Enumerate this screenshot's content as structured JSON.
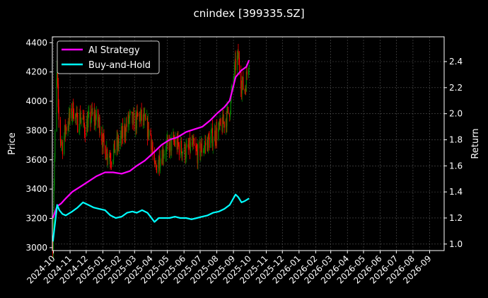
{
  "chart_data": {
    "type": "line",
    "title": "cnindex [399335.SZ]",
    "xlabel": "",
    "ylabel": "Price",
    "ylabel_right": "Return",
    "x_ticks": [
      "2024-10",
      "2024-11",
      "2024-12",
      "2025-01",
      "2025-02",
      "2025-03",
      "2025-04",
      "2025-05",
      "2025-06",
      "2025-07",
      "2025-08",
      "2025-09",
      "2025-10",
      "2025-11",
      "2025-12",
      "2026-01",
      "2026-02",
      "2026-03",
      "2026-04",
      "2026-05",
      "2026-06",
      "2026-07",
      "2026-08",
      "2026-09"
    ],
    "xlim": [
      "2024-09-29",
      "2026-09-28"
    ],
    "ylim_left": [
      2980,
      4440
    ],
    "yticks_left": [
      3000,
      3200,
      3400,
      3600,
      3800,
      4000,
      4200,
      4400
    ],
    "ylim_right": [
      0.95,
      2.59
    ],
    "yticks_right": [
      1.0,
      1.2,
      1.4,
      1.6,
      1.8,
      2.0,
      2.2,
      2.4
    ],
    "grid": true,
    "legend": {
      "placement": "top-left",
      "entries": [
        {
          "label": "AI Strategy",
          "color": "#ff00ff"
        },
        {
          "label": "Buy-and-Hold",
          "color": "#00ffff"
        }
      ]
    },
    "colors": {
      "background": "#000000",
      "up_candle": "#008000",
      "down_candle": "#ff0000",
      "grid": "#555555",
      "axes": "#ffffff"
    },
    "price_anchor_points": [
      [
        "2024-09-30",
        3020
      ],
      [
        "2024-10-02",
        3450
      ],
      [
        "2024-10-04",
        3750
      ],
      [
        "2024-10-08",
        4250
      ],
      [
        "2024-10-10",
        3900
      ],
      [
        "2024-10-14",
        3750
      ],
      [
        "2024-10-18",
        3700
      ],
      [
        "2024-10-24",
        3820
      ],
      [
        "2024-10-31",
        3880
      ],
      [
        "2024-11-07",
        3950
      ],
      [
        "2024-11-14",
        3850
      ],
      [
        "2024-11-21",
        3900
      ],
      [
        "2024-11-28",
        3820
      ],
      [
        "2024-12-05",
        3860
      ],
      [
        "2024-12-12",
        3900
      ],
      [
        "2024-12-19",
        3880
      ],
      [
        "2024-12-26",
        3850
      ],
      [
        "2025-01-03",
        3680
      ],
      [
        "2025-01-10",
        3650
      ],
      [
        "2025-01-17",
        3620
      ],
      [
        "2025-01-24",
        3680
      ],
      [
        "2025-02-01",
        3720
      ],
      [
        "2025-02-10",
        3800
      ],
      [
        "2025-02-20",
        3880
      ],
      [
        "2025-03-01",
        3850
      ],
      [
        "2025-03-10",
        3900
      ],
      [
        "2025-03-20",
        3850
      ],
      [
        "2025-03-31",
        3770
      ],
      [
        "2025-04-07",
        3520
      ],
      [
        "2025-04-14",
        3600
      ],
      [
        "2025-04-24",
        3660
      ],
      [
        "2025-05-05",
        3700
      ],
      [
        "2025-05-15",
        3720
      ],
      [
        "2025-05-25",
        3680
      ],
      [
        "2025-06-05",
        3650
      ],
      [
        "2025-06-15",
        3700
      ],
      [
        "2025-06-25",
        3640
      ],
      [
        "2025-07-05",
        3680
      ],
      [
        "2025-07-15",
        3720
      ],
      [
        "2025-07-25",
        3760
      ],
      [
        "2025-08-05",
        3800
      ],
      [
        "2025-08-15",
        3860
      ],
      [
        "2025-08-25",
        3950
      ],
      [
        "2025-09-05",
        4250
      ],
      [
        "2025-09-10",
        4300
      ],
      [
        "2025-09-16",
        4120
      ],
      [
        "2025-09-22",
        4080
      ],
      [
        "2025-09-30",
        4300
      ]
    ],
    "series": [
      {
        "name": "AI Strategy",
        "color": "#ff00ff",
        "axis": "right",
        "points": [
          [
            "2024-09-30",
            1.2
          ],
          [
            "2024-10-08",
            1.29
          ],
          [
            "2024-10-15",
            1.31
          ],
          [
            "2024-10-24",
            1.35
          ],
          [
            "2024-11-05",
            1.4
          ],
          [
            "2024-11-20",
            1.44
          ],
          [
            "2024-12-05",
            1.48
          ],
          [
            "2024-12-20",
            1.52
          ],
          [
            "2025-01-05",
            1.55
          ],
          [
            "2025-01-20",
            1.55
          ],
          [
            "2025-02-05",
            1.54
          ],
          [
            "2025-02-20",
            1.56
          ],
          [
            "2025-03-05",
            1.6
          ],
          [
            "2025-03-20",
            1.64
          ],
          [
            "2025-04-05",
            1.7
          ],
          [
            "2025-04-20",
            1.76
          ],
          [
            "2025-05-05",
            1.8
          ],
          [
            "2025-05-20",
            1.82
          ],
          [
            "2025-06-05",
            1.86
          ],
          [
            "2025-06-20",
            1.88
          ],
          [
            "2025-07-05",
            1.9
          ],
          [
            "2025-07-20",
            1.95
          ],
          [
            "2025-08-01",
            2.0
          ],
          [
            "2025-08-15",
            2.05
          ],
          [
            "2025-08-25",
            2.1
          ],
          [
            "2025-09-05",
            2.28
          ],
          [
            "2025-09-15",
            2.33
          ],
          [
            "2025-09-25",
            2.36
          ],
          [
            "2025-09-30",
            2.41
          ]
        ]
      },
      {
        "name": "Buy-and-Hold",
        "color": "#00ffff",
        "axis": "right",
        "points": [
          [
            "2024-09-30",
            1.02
          ],
          [
            "2024-10-04",
            1.16
          ],
          [
            "2024-10-08",
            1.3
          ],
          [
            "2024-10-12",
            1.26
          ],
          [
            "2024-10-18",
            1.23
          ],
          [
            "2024-10-24",
            1.22
          ],
          [
            "2024-11-05",
            1.25
          ],
          [
            "2024-11-15",
            1.28
          ],
          [
            "2024-11-25",
            1.32
          ],
          [
            "2024-12-05",
            1.3
          ],
          [
            "2024-12-15",
            1.28
          ],
          [
            "2024-12-25",
            1.27
          ],
          [
            "2025-01-05",
            1.26
          ],
          [
            "2025-01-15",
            1.22
          ],
          [
            "2025-01-25",
            1.2
          ],
          [
            "2025-02-05",
            1.21
          ],
          [
            "2025-02-15",
            1.24
          ],
          [
            "2025-02-25",
            1.25
          ],
          [
            "2025-03-05",
            1.24
          ],
          [
            "2025-03-15",
            1.26
          ],
          [
            "2025-03-25",
            1.24
          ],
          [
            "2025-04-07",
            1.17
          ],
          [
            "2025-04-15",
            1.2
          ],
          [
            "2025-04-25",
            1.2
          ],
          [
            "2025-05-05",
            1.2
          ],
          [
            "2025-05-15",
            1.21
          ],
          [
            "2025-05-25",
            1.2
          ],
          [
            "2025-06-05",
            1.2
          ],
          [
            "2025-06-15",
            1.19
          ],
          [
            "2025-06-25",
            1.2
          ],
          [
            "2025-07-05",
            1.21
          ],
          [
            "2025-07-15",
            1.22
          ],
          [
            "2025-07-25",
            1.24
          ],
          [
            "2025-08-05",
            1.25
          ],
          [
            "2025-08-15",
            1.27
          ],
          [
            "2025-08-25",
            1.3
          ],
          [
            "2025-09-05",
            1.38
          ],
          [
            "2025-09-10",
            1.36
          ],
          [
            "2025-09-16",
            1.32
          ],
          [
            "2025-09-22",
            1.33
          ],
          [
            "2025-09-30",
            1.35
          ]
        ]
      }
    ]
  }
}
